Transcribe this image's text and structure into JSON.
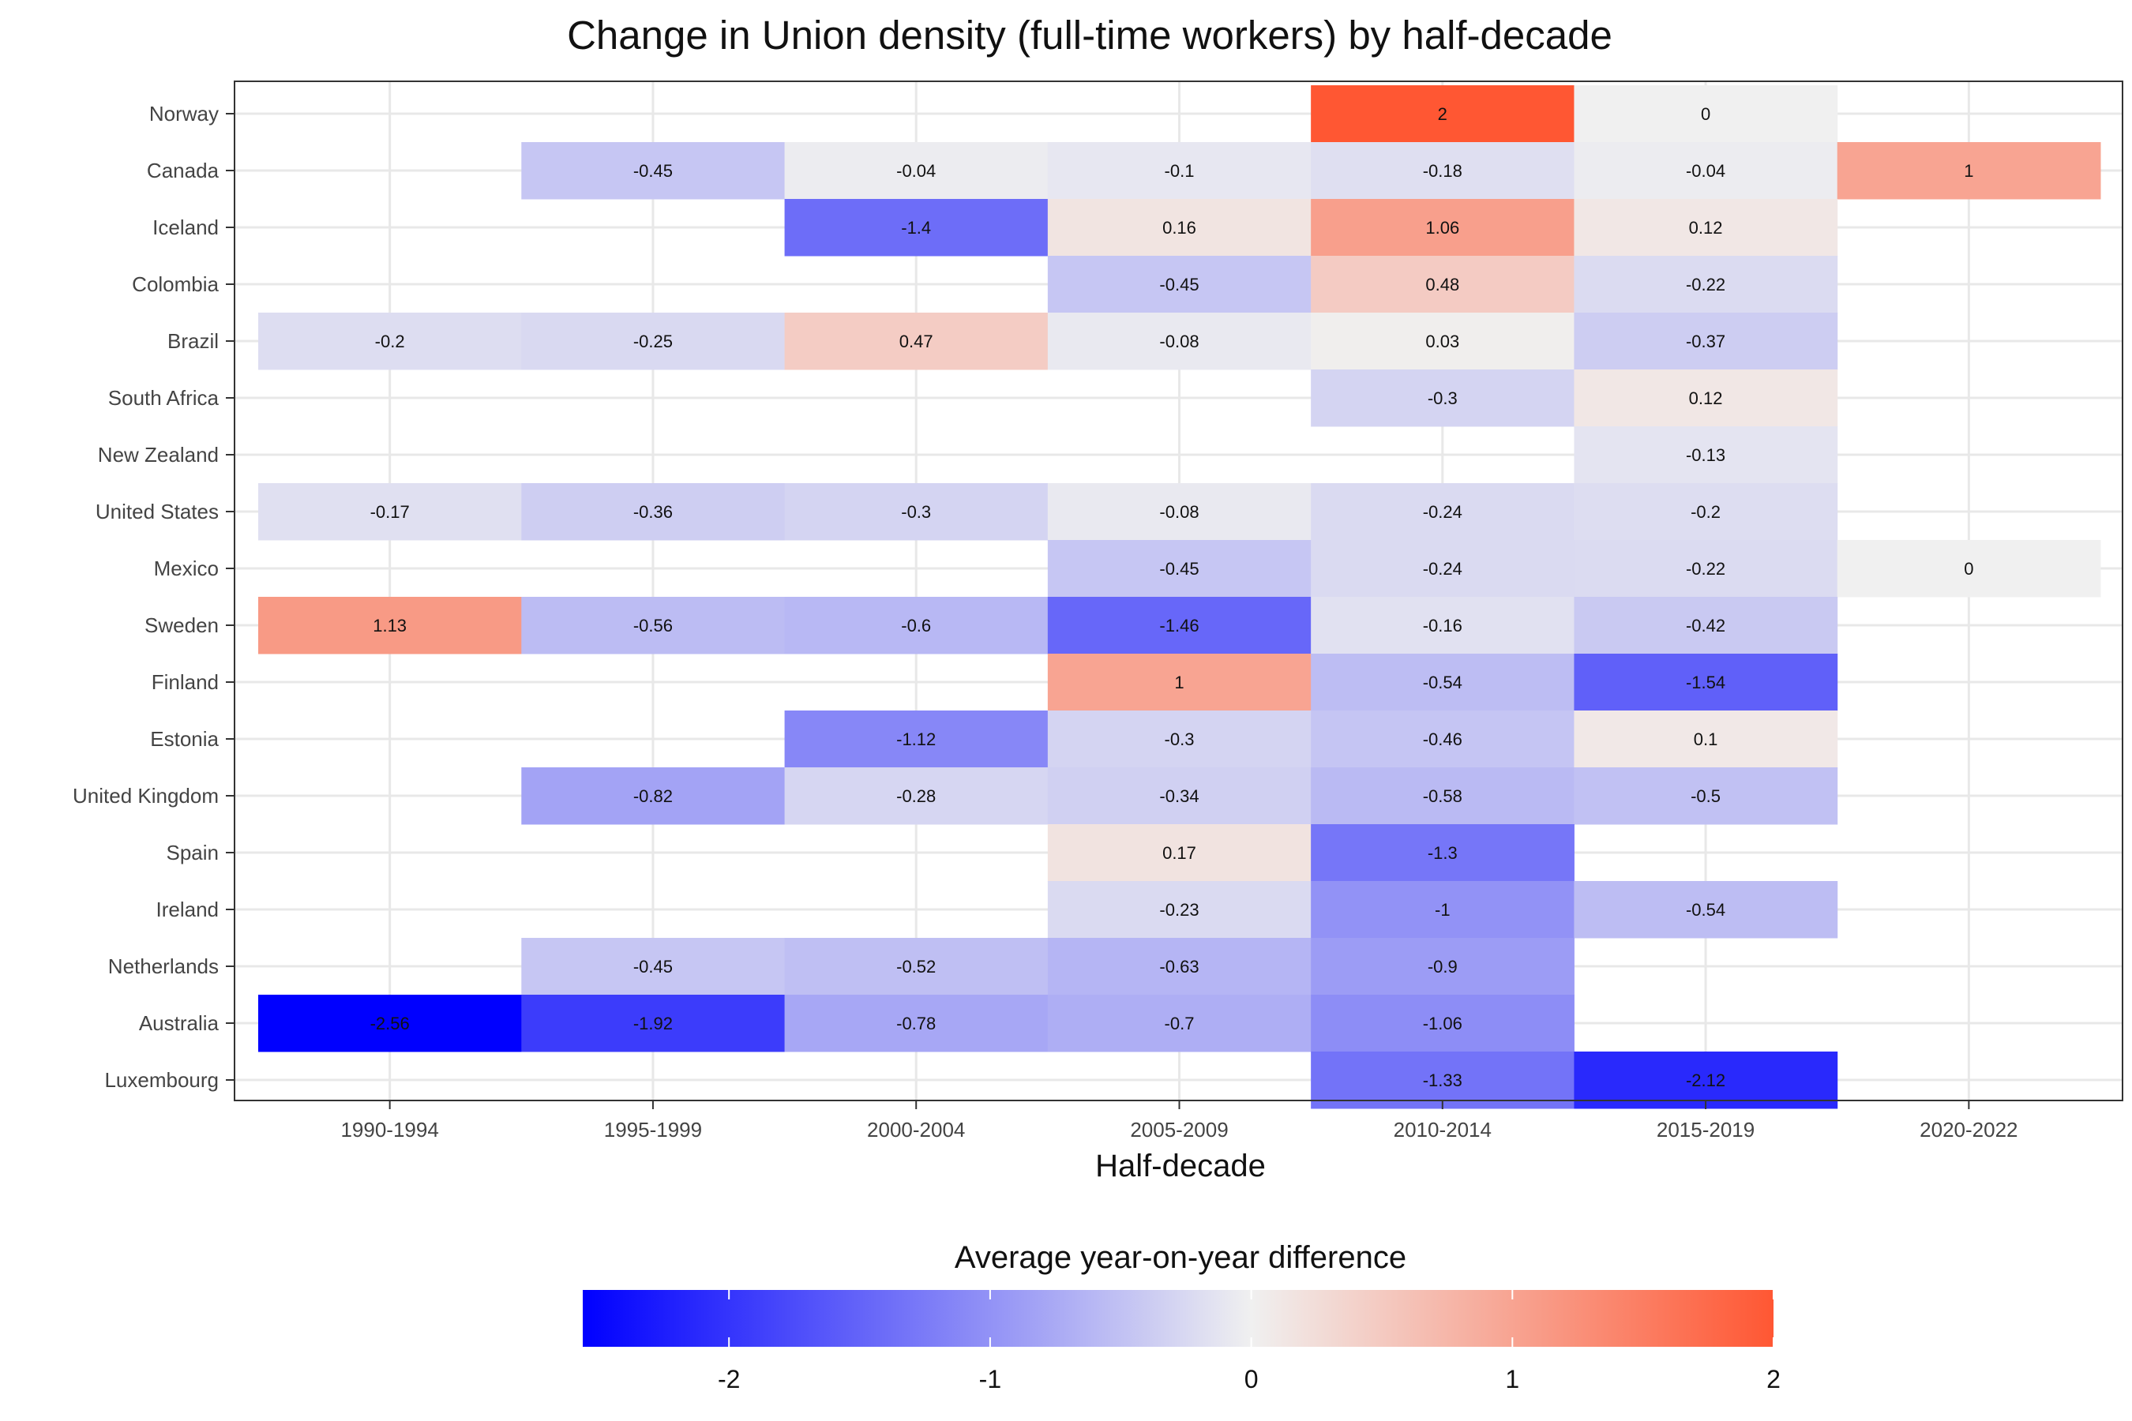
{
  "chart_data": {
    "type": "heatmap",
    "title": "Change in Union density (full-time workers) by half-decade",
    "xlabel": "Half-decade",
    "ylabel": "",
    "x_categories": [
      "1990-1994",
      "1995-1999",
      "2000-2004",
      "2005-2009",
      "2010-2014",
      "2015-2019",
      "2020-2022"
    ],
    "y_categories": [
      "Norway",
      "Canada",
      "Iceland",
      "Colombia",
      "Brazil",
      "South Africa",
      "New Zealand",
      "United States",
      "Mexico",
      "Sweden",
      "Finland",
      "Estonia",
      "United Kingdom",
      "Spain",
      "Ireland",
      "Netherlands",
      "Australia",
      "Luxembourg"
    ],
    "values": [
      [
        null,
        null,
        null,
        null,
        2,
        0,
        null
      ],
      [
        null,
        -0.45,
        -0.04,
        -0.1,
        -0.18,
        -0.04,
        1
      ],
      [
        null,
        null,
        -1.4,
        0.16,
        1.06,
        0.12,
        null
      ],
      [
        null,
        null,
        null,
        -0.45,
        0.48,
        -0.22,
        null
      ],
      [
        -0.2,
        -0.25,
        0.47,
        -0.08,
        0.03,
        -0.37,
        null
      ],
      [
        null,
        null,
        null,
        null,
        -0.3,
        0.12,
        null
      ],
      [
        null,
        null,
        null,
        null,
        null,
        -0.13,
        null
      ],
      [
        -0.17,
        -0.36,
        -0.3,
        -0.08,
        -0.24,
        -0.2,
        null
      ],
      [
        null,
        null,
        null,
        -0.45,
        -0.24,
        -0.22,
        0
      ],
      [
        1.13,
        -0.56,
        -0.6,
        -1.46,
        -0.16,
        -0.42,
        null
      ],
      [
        null,
        null,
        null,
        1,
        -0.54,
        -1.54,
        null
      ],
      [
        null,
        null,
        -1.12,
        -0.3,
        -0.46,
        0.1,
        null
      ],
      [
        null,
        -0.82,
        -0.28,
        -0.34,
        -0.58,
        -0.5,
        null
      ],
      [
        null,
        null,
        null,
        0.17,
        -1.3,
        null,
        null
      ],
      [
        null,
        null,
        null,
        -0.23,
        -1,
        -0.54,
        null
      ],
      [
        null,
        -0.45,
        -0.52,
        -0.63,
        -0.9,
        null,
        null
      ],
      [
        -2.56,
        -1.92,
        -0.78,
        -0.7,
        -1.06,
        null,
        null
      ],
      [
        null,
        null,
        null,
        null,
        -1.33,
        -2.12,
        null
      ]
    ],
    "legend": {
      "title": "Average year-on-year difference",
      "placement": "bottom",
      "range": [
        -2.56,
        2
      ],
      "ticks": [
        -2,
        -1,
        0,
        1,
        2
      ],
      "colors": {
        "low": "#0000FF",
        "mid": "#F0F0F0",
        "high": "#FF5733"
      }
    },
    "grid": true
  }
}
